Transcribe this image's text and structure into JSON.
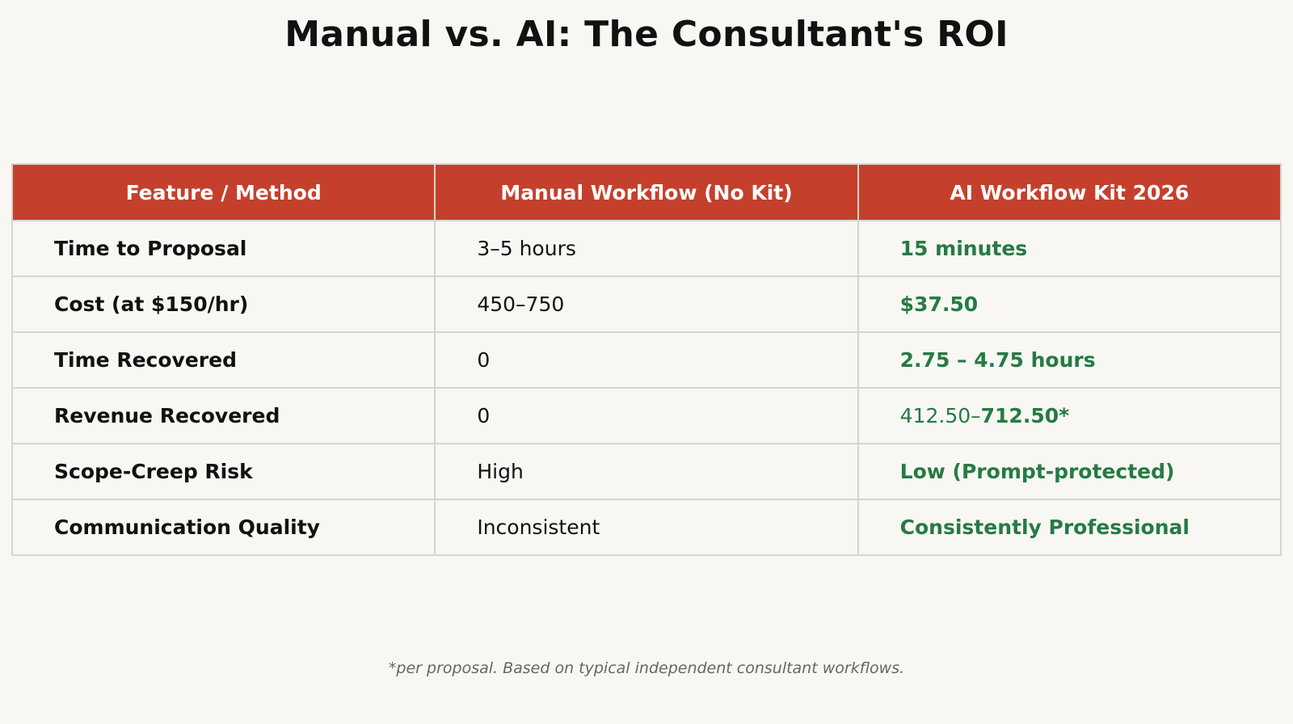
{
  "header": {
    "title": "Manual vs. AI: The Consultant's ROI"
  },
  "table": {
    "columns": [
      "Feature / Method",
      "Manual Workflow (No Kit)",
      "AI Workflow Kit 2026"
    ],
    "rows": [
      [
        "Time to Proposal",
        "3–5 hours",
        [
          "15 minutes"
        ]
      ],
      [
        "Cost (at $150/hr)",
        "450–750",
        [
          "$37.50"
        ]
      ],
      [
        "Time Recovered",
        "0",
        [
          "2.75 – 4.75 hours"
        ]
      ],
      [
        "Revenue Recovered",
        "0",
        [
          "412.50–",
          "712.50*"
        ]
      ],
      [
        "Scope-Creep Risk",
        "High",
        [
          "Low (Prompt-protected)"
        ]
      ],
      [
        "Communication Quality",
        "Inconsistent",
        [
          "Consistently Professional"
        ]
      ]
    ]
  },
  "footnote": "*per proposal. Based on typical independent consultant workflows."
}
